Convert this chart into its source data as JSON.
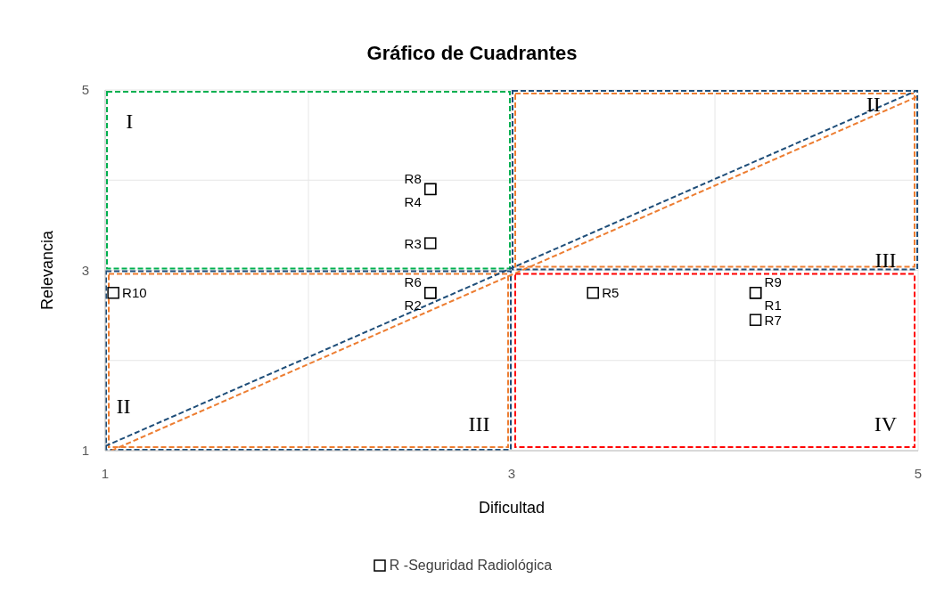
{
  "chart_data": {
    "type": "scatter",
    "title": "Gráfico de Cuadrantes",
    "xlabel": "Dificultad",
    "ylabel": "Relevancia",
    "xlim": [
      1,
      5
    ],
    "ylim": [
      1,
      5
    ],
    "xticks": [
      1,
      {
        "value": 2,
        "label": null
      },
      3,
      {
        "value": 4,
        "label": null
      },
      5
    ],
    "yticks": [
      1,
      {
        "value": 2,
        "label": null
      },
      3,
      {
        "value": 4,
        "label": null
      },
      5
    ],
    "grid": true,
    "legend": "bottom",
    "annotations": [
      "I",
      "II",
      "III",
      "II",
      "III",
      "IV"
    ],
    "series": [
      {
        "type": "line",
        "color": "#1f4e79",
        "line_style": "dashed",
        "x": [
          1,
          5
        ],
        "values": [
          1.05,
          5
        ]
      },
      {
        "type": "line",
        "color": "#ed7d31",
        "line_style": "dashed",
        "x": [
          1.03,
          5
        ],
        "values": [
          1,
          4.93
        ]
      },
      {
        "name": "R -Seguridad Radiológica",
        "color": "#000000",
        "marker": "square",
        "x": [
          2.6,
          2.6,
          2.6,
          2.6,
          2.6,
          1.04,
          3.4,
          4.2,
          4.2,
          4.2
        ],
        "values": [
          3.9,
          3.9,
          3.3,
          2.75,
          2.75,
          2.75,
          2.75,
          2.75,
          2.75,
          2.45
        ],
        "value_labels": [
          "R8",
          "R4",
          "R3",
          "R6",
          "R2",
          "R10",
          "R5",
          "R9",
          "R1",
          "R7"
        ]
      }
    ]
  }
}
